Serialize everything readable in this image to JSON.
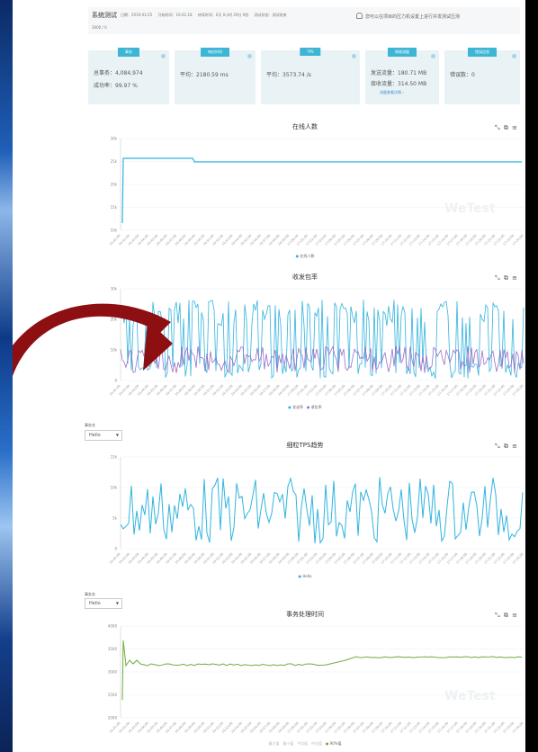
{
  "header": {
    "title": "系统测试",
    "meta": [
      "日期：2019-03-25",
      "开始时间：16:41:18",
      "持续时间：0天 0小时 29分 0秒",
      "测试状态：测试结束"
    ],
    "sub": "3000 / 0",
    "notice": "您可以在项目的压力机设置上进行并发测试压测"
  },
  "cards": {
    "c1": {
      "tag": "事务",
      "line1": "总事务：4,084,974",
      "line2": "成功率：99.97 %"
    },
    "c2": {
      "tag": "响应时间",
      "line1": "平均：2180.59 ms"
    },
    "c3": {
      "tag": "TPS",
      "line1": "平均：3573.74 /s"
    },
    "c4": {
      "tag": "网络流量",
      "line1": "发送流量：180.71 MB",
      "line2": "接收流量：314.50 MB",
      "link": "流量查看详情 ›"
    },
    "c5": {
      "tag": "错误信息",
      "line1": "错误数：0"
    }
  },
  "charts": {
    "c1": {
      "title": "在线人数",
      "legend": [
        "在线人数"
      ],
      "yticks": [
        "10k",
        "15k",
        "20k",
        "25k",
        "30k"
      ],
      "color": "#32b4de"
    },
    "c2": {
      "title": "收发包率",
      "legend": [
        "发送率",
        "收包率"
      ],
      "yticks": [
        "0",
        "10k",
        "20k",
        "30k"
      ],
      "colors": [
        "#32b4de",
        "#9b6fc7"
      ]
    },
    "c3": {
      "title": "细粒TPS趋势",
      "legend": [
        "Hello"
      ],
      "yticks": [
        "0",
        "5k",
        "10k",
        "15k"
      ],
      "select_label": "事务名",
      "select_value": "Hello"
    },
    "c4": {
      "title": "事务处理时间",
      "legend": [
        "最大值",
        "最小值",
        "平均值",
        "中位值",
        "90%值"
      ],
      "yticks": [
        "2000",
        "2500",
        "3000",
        "3500",
        "4000"
      ],
      "select_label": "事务名",
      "select_value": "Hello",
      "color": "#6fae3a"
    }
  },
  "toolbar_icons": [
    "zoom-icon",
    "restore-icon",
    "menu-icon"
  ],
  "watermark": "WeTest"
}
